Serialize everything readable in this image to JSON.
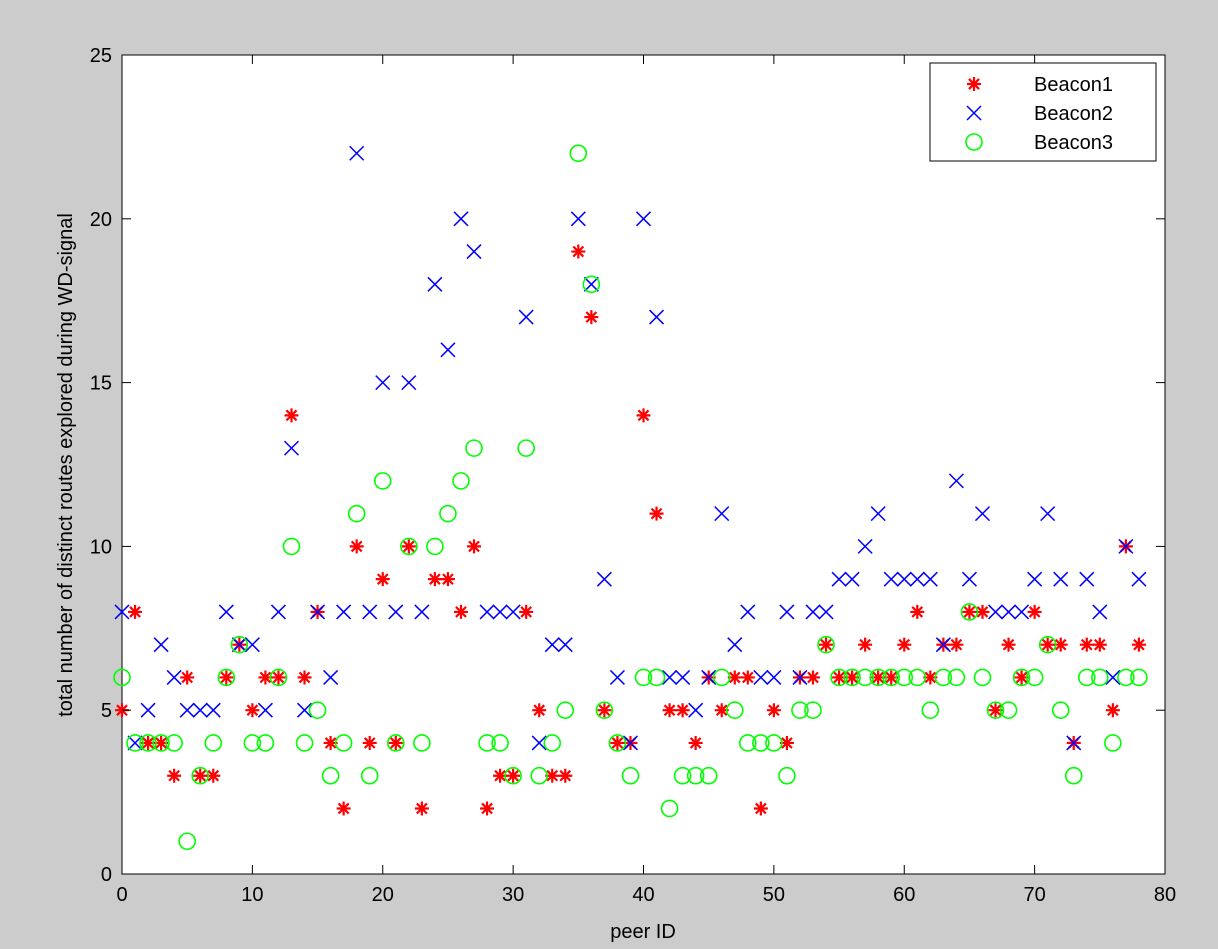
{
  "chart_data": {
    "type": "scatter",
    "title": "",
    "xlabel": "peer ID",
    "ylabel": "total number of distinct routes explored during WD-signal",
    "xlim": [
      0,
      80
    ],
    "ylim": [
      0,
      25
    ],
    "xticks": [
      "0",
      "10",
      "20",
      "30",
      "40",
      "50",
      "60",
      "70",
      "80"
    ],
    "yticks": [
      "0",
      "5",
      "10",
      "15",
      "20",
      "25"
    ],
    "grid": false,
    "legend_position": "top-right",
    "series": [
      {
        "name": "Beacon1",
        "marker": "asterisk",
        "color": "#ff0000",
        "x": [
          0,
          1,
          2,
          3,
          4,
          5,
          6,
          7,
          8,
          9,
          10,
          11,
          12,
          13,
          14,
          15,
          16,
          17,
          18,
          19,
          20,
          21,
          22,
          23,
          24,
          25,
          26,
          27,
          28,
          29,
          30,
          31,
          32,
          33,
          34,
          35,
          36,
          37,
          38,
          39,
          40,
          41,
          42,
          43,
          44,
          45,
          46,
          47,
          48,
          49,
          50,
          51,
          52,
          53,
          54,
          55,
          56,
          57,
          58,
          59,
          60,
          61,
          62,
          63,
          64,
          65,
          66,
          67,
          68,
          69,
          70,
          71,
          72,
          73,
          74,
          75,
          76,
          77,
          78
        ],
        "y": [
          5,
          8,
          4,
          4,
          3,
          6,
          3,
          3,
          6,
          7,
          5,
          6,
          6,
          14,
          6,
          8,
          4,
          2,
          10,
          4,
          9,
          4,
          10,
          2,
          9,
          9,
          8,
          10,
          2,
          3,
          3,
          8,
          5,
          3,
          3,
          19,
          17,
          5,
          4,
          4,
          14,
          11,
          5,
          5,
          4,
          6,
          5,
          6,
          6,
          2,
          5,
          4,
          6,
          6,
          7,
          6,
          6,
          7,
          6,
          6,
          7,
          8,
          6,
          7,
          7,
          8,
          8,
          5,
          7,
          6,
          8,
          7,
          7,
          4,
          7,
          7,
          5,
          10,
          7
        ]
      },
      {
        "name": "Beacon2",
        "marker": "x",
        "color": "#0000ff",
        "x": [
          0,
          1,
          2,
          3,
          4,
          5,
          6,
          7,
          8,
          9,
          10,
          11,
          12,
          13,
          14,
          15,
          16,
          17,
          18,
          19,
          20,
          21,
          22,
          23,
          24,
          25,
          26,
          27,
          28,
          29,
          30,
          31,
          32,
          33,
          34,
          35,
          36,
          37,
          38,
          39,
          40,
          41,
          42,
          43,
          44,
          45,
          46,
          47,
          48,
          49,
          50,
          51,
          52,
          53,
          54,
          55,
          56,
          57,
          58,
          59,
          60,
          61,
          62,
          63,
          64,
          65,
          66,
          67,
          68,
          69,
          70,
          71,
          72,
          73,
          74,
          75,
          76,
          77,
          78
        ],
        "y": [
          8,
          4,
          5,
          7,
          6,
          5,
          5,
          5,
          8,
          7,
          7,
          5,
          8,
          13,
          5,
          8,
          6,
          8,
          22,
          8,
          15,
          8,
          15,
          8,
          18,
          16,
          20,
          19,
          8,
          8,
          8,
          17,
          4,
          7,
          7,
          20,
          18,
          9,
          6,
          4,
          20,
          17,
          6,
          6,
          5,
          6,
          11,
          7,
          8,
          6,
          6,
          8,
          6,
          8,
          8,
          9,
          9,
          10,
          11,
          9,
          9,
          9,
          9,
          7,
          12,
          9,
          11,
          8,
          8,
          8,
          9,
          11,
          9,
          4,
          9,
          8,
          6,
          10,
          9
        ]
      },
      {
        "name": "Beacon3",
        "marker": "circle",
        "color": "#00ff00",
        "x": [
          0,
          1,
          2,
          3,
          4,
          5,
          6,
          7,
          8,
          9,
          10,
          11,
          12,
          13,
          14,
          15,
          16,
          17,
          18,
          19,
          20,
          21,
          22,
          23,
          24,
          25,
          26,
          27,
          28,
          29,
          30,
          31,
          32,
          33,
          34,
          35,
          36,
          37,
          38,
          39,
          40,
          41,
          42,
          43,
          44,
          45,
          46,
          47,
          48,
          49,
          50,
          51,
          52,
          53,
          54,
          55,
          56,
          57,
          58,
          59,
          60,
          61,
          62,
          63,
          64,
          65,
          66,
          67,
          68,
          69,
          70,
          71,
          72,
          73,
          74,
          75,
          76,
          77,
          78
        ],
        "y": [
          6,
          4,
          4,
          4,
          4,
          1,
          3,
          4,
          6,
          7,
          4,
          4,
          6,
          10,
          4,
          5,
          3,
          4,
          11,
          3,
          12,
          4,
          10,
          4,
          10,
          11,
          12,
          13,
          4,
          4,
          3,
          13,
          3,
          4,
          5,
          22,
          18,
          5,
          4,
          3,
          6,
          6,
          2,
          3,
          3,
          3,
          6,
          5,
          4,
          4,
          4,
          3,
          5,
          5,
          7,
          6,
          6,
          6,
          6,
          6,
          6,
          6,
          5,
          6,
          6,
          8,
          6,
          5,
          5,
          6,
          6,
          7,
          5,
          3,
          6,
          6,
          4,
          6,
          6
        ]
      }
    ]
  }
}
